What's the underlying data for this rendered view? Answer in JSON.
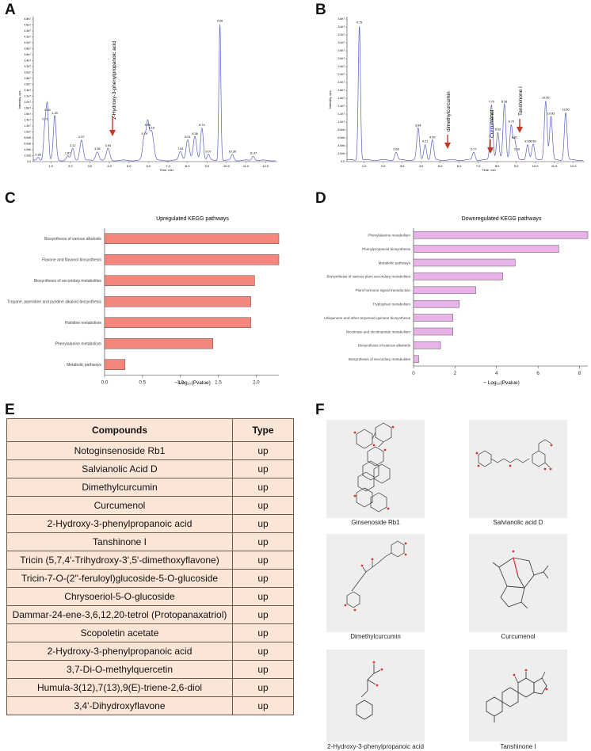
{
  "panels": {
    "a": "A",
    "b": "B",
    "c": "C",
    "d": "D",
    "e": "E",
    "f": "F"
  },
  "chromA": {
    "ylabel": "Intensity, cps",
    "xlabel": "Time, min",
    "yticks": [
      "4.8e7",
      "4.6e7",
      "4.4e7",
      "4.2e7",
      "4.0e7",
      "3.8e7",
      "3.6e7",
      "3.4e7",
      "3.2e7",
      "3.0e7",
      "2.8e7",
      "2.6e7",
      "2.4e7",
      "2.2e7",
      "2.0e7",
      "1.8e7",
      "1.6e7",
      "1.4e7",
      "1.2e7",
      "1.0e7",
      "8.0e6",
      "6.0e6",
      "4.0e6",
      "2.0e6",
      "0.0"
    ],
    "xticks": [
      "1.0",
      "2.0",
      "3.0",
      "4.0",
      "5.0",
      "6.0",
      "7.0",
      "8.0",
      "9.0",
      "10.0",
      "11.0",
      "12.0"
    ],
    "peak_labels": [
      "0.35",
      "0.71",
      "0.83",
      "1.20",
      "1.87",
      "2.12",
      "2.57",
      "3.38",
      "3.93",
      "5.79",
      "5.96",
      "6.16",
      "7.64",
      "8.01",
      "8.38",
      "8.74",
      "9.07",
      "9.66",
      "10.30",
      "11.37"
    ],
    "annotation": "2-Hydroxy-3-phenylpropanoic acid"
  },
  "chromB": {
    "ylabel": "Intensity, cps",
    "xlabel": "Time, min",
    "yticks": [
      "3.6e7",
      "3.4e7",
      "3.2e7",
      "3.0e7",
      "2.8e7",
      "2.6e7",
      "2.4e7",
      "2.2e7",
      "2.0e7",
      "1.8e7",
      "1.6e7",
      "1.4e7",
      "1.2e7",
      "1.0e7",
      "8.0e6",
      "6.0e6",
      "4.0e6",
      "2.0e6",
      "0.0"
    ],
    "xticks": [
      "1.0",
      "2.0",
      "3.0",
      "4.0",
      "5.0",
      "6.0",
      "7.0",
      "8.0",
      "9.0",
      "10.0",
      "11.0",
      "12.0"
    ],
    "peak_labels": [
      "0.75",
      "2.68",
      "3.84",
      "4.21",
      "4.59",
      "6.77",
      "7.70",
      "8.03",
      "8.38",
      "8.74",
      "8.91",
      "9.03",
      "9.60",
      "9.89",
      "10.55",
      "10.83",
      "11.60"
    ],
    "annotations": [
      "dimethylcurcumin",
      "Curcumenol",
      "Tanshinone I"
    ]
  },
  "chart_data": [
    {
      "type": "bar",
      "title": "Upregulated KEGG pathways",
      "xlabel": "− Log₁₀(Pvalue)",
      "categories": [
        "Biosynthesis of various alkaloids",
        "Flavone and flavonol biosynthesis",
        "Biosynthesis of secondary metabolites",
        "Tropane, piperidine and pyridine alkaloid biosynthesis",
        "Histidine metabolism",
        "Phenylalanine metabolism",
        "Metabolic pathways"
      ],
      "values": [
        2.3,
        2.3,
        1.98,
        1.93,
        1.93,
        1.43,
        0.27
      ],
      "xlim": [
        0,
        2.3
      ],
      "xticks": [
        "0.0",
        "0.5",
        "1.0",
        "1.5",
        "2.0"
      ],
      "color": "#f4867c"
    },
    {
      "type": "bar",
      "title": "Downregulated KEGG pathways",
      "xlabel": "− Log₁₀(Pvalue)",
      "categories": [
        "Phenylalanine metabolism",
        "Phenylpropanoid biosynthesis",
        "Metabolic pathways",
        "Biosynthesis of various plant secondary metabolites",
        "Plant hormone signal transduction",
        "Tryptophan metabolism",
        "Ubiquinone and other terpenoid-quinone biosynthesis",
        "Nicotinate and nicotinamide metabolism",
        "Biosynthesis of various alkaloids",
        "Biosynthesis of secondary metabolites"
      ],
      "values": [
        8.4,
        7.0,
        4.9,
        4.3,
        3.0,
        2.2,
        1.9,
        1.9,
        1.3,
        0.25
      ],
      "xlim": [
        0,
        8.4
      ],
      "xticks": [
        "0",
        "2",
        "4",
        "6",
        "8"
      ],
      "color": "#e9b3ea"
    }
  ],
  "table": {
    "headers": [
      "Compounds",
      "Type"
    ],
    "rows": [
      [
        "Notoginsenoside Rb1",
        "up"
      ],
      [
        "Salvianolic Acid D",
        "up"
      ],
      [
        "Dimethylcurcumin",
        "up"
      ],
      [
        "Curcumenol",
        "up"
      ],
      [
        "2-Hydroxy-3-phenylpropanoic acid",
        "up"
      ],
      [
        "Tanshinone I",
        "up"
      ],
      [
        "Tricin (5,7,4'-Trihydroxy-3',5'-dimethoxyflavone)",
        "up"
      ],
      [
        "Tricin-7-O-(2''-feruloyl)glucoside-5-O-glucoside",
        "up"
      ],
      [
        "Chrysoeriol-5-O-glucoside",
        "up"
      ],
      [
        "Dammar-24-ene-3,6,12,20-tetrol (Protopanaxatriol)",
        "up"
      ],
      [
        "Scopoletin acetate",
        "up"
      ],
      [
        "2-Hydroxy-3-phenylpropanoic acid",
        "up"
      ],
      [
        "3,7-Di-O-methylquercetin",
        "up"
      ],
      [
        "Humula-3(12),7(13),9(E)-triene-2,6-diol",
        "up"
      ],
      [
        "3,4'-Dihydroxyflavone",
        "up"
      ]
    ]
  },
  "structures": [
    "Ginsenoside Rb1",
    "Salvianolic acid D",
    "Dimethylcurcumin",
    "Curcumenol",
    "2-Hydroxy-3-phenylpropanoic acid",
    "Tanshinone I"
  ]
}
